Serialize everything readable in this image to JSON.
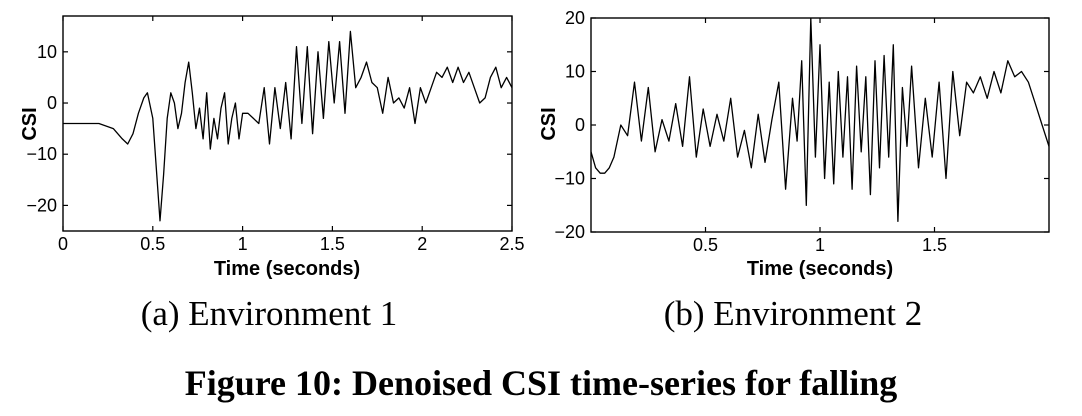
{
  "figure_caption": "Figure 10: Denoised CSI time-series for falling",
  "chart_data": [
    {
      "type": "line",
      "subcaption": "(a) Environment 1",
      "xlabel": "Time (seconds)",
      "ylabel": "CSI",
      "xlim": [
        0,
        2.5
      ],
      "ylim": [
        -25,
        17
      ],
      "xticks": [
        0,
        0.5,
        1,
        1.5,
        2,
        2.5
      ],
      "xtick_labels": [
        "0",
        "0.5",
        "1",
        "1.5",
        "2",
        "2.5"
      ],
      "yticks": [
        10,
        0,
        -10,
        -20
      ],
      "ytick_labels": [
        "10",
        "0",
        "−10",
        "−20"
      ],
      "grid": false,
      "series": [
        {
          "x": [
            0.0,
            0.1,
            0.2,
            0.28,
            0.33,
            0.36,
            0.39,
            0.42,
            0.45,
            0.47,
            0.5,
            0.52,
            0.54,
            0.56,
            0.58,
            0.6,
            0.62,
            0.64,
            0.66,
            0.68,
            0.7,
            0.72,
            0.74,
            0.76,
            0.78,
            0.8,
            0.82,
            0.84,
            0.86,
            0.88,
            0.9,
            0.92,
            0.94,
            0.96,
            0.98,
            1.0,
            1.03,
            1.06,
            1.09,
            1.12,
            1.15,
            1.18,
            1.21,
            1.24,
            1.27,
            1.3,
            1.33,
            1.36,
            1.39,
            1.42,
            1.45,
            1.48,
            1.51,
            1.54,
            1.57,
            1.6,
            1.63,
            1.66,
            1.69,
            1.72,
            1.75,
            1.78,
            1.81,
            1.84,
            1.87,
            1.9,
            1.93,
            1.96,
            1.99,
            2.02,
            2.05,
            2.08,
            2.11,
            2.14,
            2.17,
            2.2,
            2.23,
            2.26,
            2.29,
            2.32,
            2.35,
            2.38,
            2.41,
            2.44,
            2.47,
            2.5
          ],
          "y": [
            -4,
            -4,
            -4,
            -5,
            -7,
            -8,
            -6,
            -2,
            1,
            2,
            -3,
            -13,
            -23,
            -14,
            -3,
            2,
            0,
            -5,
            -2,
            4,
            8,
            2,
            -5,
            -1,
            -7,
            2,
            -9,
            -3,
            -7,
            -1,
            2,
            -8,
            -3,
            0,
            -7,
            -2,
            -2,
            -3,
            -4,
            3,
            -8,
            3,
            -5,
            4,
            -7,
            11,
            -4,
            11,
            -6,
            10,
            -3,
            12,
            0,
            12,
            -2,
            14,
            3,
            5,
            8,
            4,
            3,
            -2,
            5,
            0,
            1,
            -1,
            3,
            -4,
            3,
            0,
            3,
            6,
            5,
            7,
            4,
            7,
            4,
            6,
            3,
            0,
            1,
            5,
            7,
            3,
            5,
            3
          ]
        }
      ]
    },
    {
      "type": "line",
      "subcaption": "(b) Environment 2",
      "xlabel": "Time (seconds)",
      "ylabel": "CSI",
      "xlim": [
        0,
        2.0
      ],
      "ylim": [
        -20,
        20
      ],
      "xticks": [
        0.5,
        1,
        1.5
      ],
      "xtick_labels": [
        "0.5",
        "1",
        "1.5"
      ],
      "yticks": [
        20,
        10,
        0,
        -10,
        -20
      ],
      "ytick_labels": [
        "20",
        "10",
        "0",
        "−10",
        "−20"
      ],
      "grid": false,
      "series": [
        {
          "x": [
            0.0,
            0.02,
            0.04,
            0.06,
            0.08,
            0.1,
            0.13,
            0.16,
            0.19,
            0.22,
            0.25,
            0.28,
            0.31,
            0.34,
            0.37,
            0.4,
            0.43,
            0.46,
            0.49,
            0.52,
            0.55,
            0.58,
            0.61,
            0.64,
            0.67,
            0.7,
            0.73,
            0.76,
            0.79,
            0.82,
            0.85,
            0.88,
            0.9,
            0.92,
            0.94,
            0.96,
            0.98,
            1.0,
            1.02,
            1.04,
            1.06,
            1.08,
            1.1,
            1.12,
            1.14,
            1.16,
            1.18,
            1.2,
            1.22,
            1.24,
            1.26,
            1.28,
            1.3,
            1.32,
            1.34,
            1.36,
            1.38,
            1.4,
            1.43,
            1.46,
            1.49,
            1.52,
            1.55,
            1.58,
            1.61,
            1.64,
            1.67,
            1.7,
            1.73,
            1.76,
            1.79,
            1.82,
            1.85,
            1.88,
            1.91,
            1.94,
            1.97,
            2.0
          ],
          "y": [
            -5,
            -8,
            -9,
            -9,
            -8,
            -6,
            0,
            -2,
            8,
            -3,
            7,
            -5,
            1,
            -3,
            4,
            -4,
            9,
            -6,
            3,
            -4,
            2,
            -3,
            5,
            -6,
            -1,
            -8,
            2,
            -7,
            1,
            8,
            -12,
            5,
            -3,
            12,
            -15,
            20,
            -6,
            15,
            -10,
            8,
            -11,
            10,
            -6,
            9,
            -12,
            11,
            -5,
            9,
            -13,
            12,
            -8,
            13,
            -6,
            15,
            -18,
            7,
            -4,
            11,
            -8,
            5,
            -6,
            8,
            -10,
            10,
            -2,
            8,
            6,
            9,
            5,
            10,
            6,
            12,
            9,
            10,
            8,
            4,
            0,
            -4
          ]
        }
      ]
    }
  ]
}
